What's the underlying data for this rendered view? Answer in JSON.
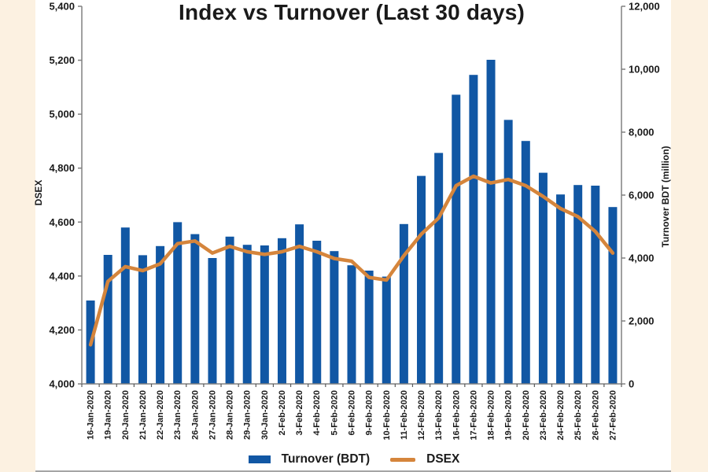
{
  "header": {
    "title": "Index vs Turnover (Last 30 days)"
  },
  "chart_data": {
    "type": "combo",
    "title": "Index vs Turnover (Last 30 days)",
    "categories": [
      "16-Jan-2020",
      "19-Jan-2020",
      "20-Jan-2020",
      "21-Jan-2020",
      "22-Jan-2020",
      "23-Jan-2020",
      "26-Jan-2020",
      "27-Jan-2020",
      "28-Jan-2020",
      "29-Jan-2020",
      "30-Jan-2020",
      "2-Feb-2020",
      "3-Feb-2020",
      "4-Feb-2020",
      "5-Feb-2020",
      "6-Feb-2020",
      "9-Feb-2020",
      "10-Feb-2020",
      "11-Feb-2020",
      "12-Feb-2020",
      "13-Feb-2020",
      "16-Feb-2020",
      "17-Feb-2020",
      "18-Feb-2020",
      "19-Feb-2020",
      "20-Feb-2020",
      "23-Feb-2020",
      "24-Feb-2020",
      "25-Feb-2020",
      "26-Feb-2020",
      "27-Feb-2020"
    ],
    "series": [
      {
        "name": "Turnover (BDT)",
        "chart_type": "bar",
        "axis": "right",
        "values": [
          2650,
          4100,
          4970,
          4090,
          4380,
          5140,
          4760,
          4000,
          4680,
          4420,
          4400,
          4630,
          5070,
          4550,
          4220,
          3770,
          3600,
          3410,
          5080,
          6610,
          7340,
          9190,
          9820,
          10300,
          8390,
          7720,
          6710,
          6020,
          6320,
          6300,
          5620
        ]
      },
      {
        "name": "DSEX",
        "chart_type": "line",
        "axis": "left",
        "values": [
          4145,
          4380,
          4435,
          4420,
          4445,
          4520,
          4530,
          4485,
          4510,
          4490,
          4480,
          4490,
          4510,
          4490,
          4465,
          4455,
          4395,
          4385,
          4475,
          4555,
          4615,
          4735,
          4770,
          4745,
          4758,
          4735,
          4695,
          4650,
          4620,
          4565,
          4485
        ]
      }
    ],
    "left_axis": {
      "title": "DSEX",
      "min": 4000,
      "max": 5400,
      "step": 200
    },
    "right_axis": {
      "title": "Turnover BDT (million)",
      "min": 0,
      "max": 12000,
      "step": 2000
    },
    "legend_position": "bottom",
    "grid": false
  },
  "colors": {
    "background": "#FCF1E1",
    "panel": "#FFFFFF",
    "bar": "#1157A4",
    "line": "#D5853C",
    "axis": "#808080",
    "x_tick": "#595959",
    "text": "#1A1A1A",
    "bottom_rule": "#A5A5A5"
  }
}
